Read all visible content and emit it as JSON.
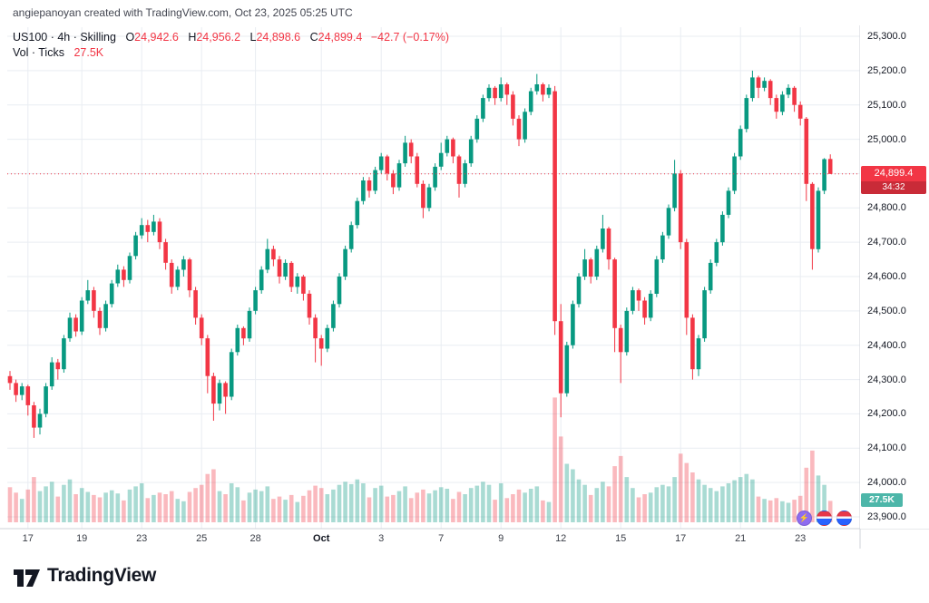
{
  "attribution": "angiepanoyan created with TradingView.com, Oct 23, 2025 05:25 UTC",
  "legend": {
    "title": "US100 · 4h · Skilling",
    "ohlc": {
      "o_label": "O",
      "o": "24,942.6",
      "h_label": "H",
      "h": "24,956.2",
      "l_label": "L",
      "l": "24,898.6",
      "c_label": "C",
      "c": "24,899.4",
      "change": "−42.7 (−0.17%)"
    },
    "volume_label": "Vol · Ticks",
    "volume_value": "27.5K"
  },
  "price_badge": {
    "price": "24,899.4",
    "countdown": "34:32"
  },
  "volume_badge": "27.5K",
  "icons": {
    "lightning_glyph": "⚡"
  },
  "footer": {
    "brand": "TradingView"
  },
  "chart_data": {
    "type": "candlestick",
    "title": "US100 4h Skilling",
    "symbol": "US100",
    "interval": "4h",
    "y_min": 23900,
    "y_max": 25300,
    "last_price": 24899.4,
    "last_volume_k": 27.5,
    "volume_units": "K",
    "colors": {
      "up": "#089981",
      "down": "#f23645"
    },
    "price_ticks": [
      {
        "value": 25300,
        "label": "25,300.0"
      },
      {
        "value": 25200,
        "label": "25,200.0"
      },
      {
        "value": 25100,
        "label": "25,100.0"
      },
      {
        "value": 25000,
        "label": "25,000.0"
      },
      {
        "value": 24900,
        "label": "24,900.0"
      },
      {
        "value": 24800,
        "label": "24,800.0"
      },
      {
        "value": 24700,
        "label": "24,700.0"
      },
      {
        "value": 24600,
        "label": "24,600.0"
      },
      {
        "value": 24500,
        "label": "24,500.0"
      },
      {
        "value": 24400,
        "label": "24,400.0"
      },
      {
        "value": 24300,
        "label": "24,300.0"
      },
      {
        "value": 24200,
        "label": "24,200.0"
      },
      {
        "value": 24100,
        "label": "24,100.0"
      },
      {
        "value": 24000,
        "label": "24,000.0"
      },
      {
        "value": 23900,
        "label": "23,900.0"
      }
    ],
    "time_ticks": [
      {
        "i": 3,
        "label": "17"
      },
      {
        "i": 12,
        "label": "19"
      },
      {
        "i": 22,
        "label": "23"
      },
      {
        "i": 32,
        "label": "25"
      },
      {
        "i": 41,
        "label": "28"
      },
      {
        "i": 52,
        "label": "Oct",
        "bold": true
      },
      {
        "i": 62,
        "label": "3"
      },
      {
        "i": 72,
        "label": "7"
      },
      {
        "i": 82,
        "label": "9"
      },
      {
        "i": 92,
        "label": "12"
      },
      {
        "i": 102,
        "label": "15"
      },
      {
        "i": 112,
        "label": "17"
      },
      {
        "i": 122,
        "label": "21"
      },
      {
        "i": 132,
        "label": "23"
      }
    ],
    "candles": [
      [
        24310,
        24325,
        24270,
        24290,
        45
      ],
      [
        24290,
        24300,
        24235,
        24255,
        38
      ],
      [
        24255,
        24290,
        24240,
        24280,
        30
      ],
      [
        24280,
        24285,
        24195,
        24225,
        42
      ],
      [
        24225,
        24235,
        24130,
        24160,
        58
      ],
      [
        24160,
        24215,
        24140,
        24200,
        40
      ],
      [
        24200,
        24290,
        24190,
        24280,
        46
      ],
      [
        24280,
        24365,
        24270,
        24350,
        52
      ],
      [
        24350,
        24360,
        24300,
        24330,
        33
      ],
      [
        24330,
        24430,
        24320,
        24420,
        48
      ],
      [
        24420,
        24495,
        24410,
        24480,
        55
      ],
      [
        24480,
        24490,
        24425,
        24440,
        36
      ],
      [
        24440,
        24540,
        24430,
        24530,
        44
      ],
      [
        24530,
        24590,
        24520,
        24560,
        39
      ],
      [
        24560,
        24570,
        24480,
        24500,
        35
      ],
      [
        24500,
        24510,
        24430,
        24450,
        32
      ],
      [
        24450,
        24530,
        24440,
        24520,
        38
      ],
      [
        24520,
        24590,
        24510,
        24580,
        41
      ],
      [
        24580,
        24635,
        24570,
        24620,
        37
      ],
      [
        24620,
        24630,
        24570,
        24590,
        28
      ],
      [
        24590,
        24670,
        24580,
        24660,
        42
      ],
      [
        24660,
        24730,
        24650,
        24720,
        46
      ],
      [
        24720,
        24770,
        24710,
        24750,
        50
      ],
      [
        24750,
        24765,
        24700,
        24730,
        31
      ],
      [
        24730,
        24780,
        24720,
        24760,
        35
      ],
      [
        24760,
        24770,
        24680,
        24700,
        38
      ],
      [
        24700,
        24710,
        24620,
        24640,
        36
      ],
      [
        24640,
        24650,
        24550,
        24570,
        40
      ],
      [
        24570,
        24630,
        24560,
        24620,
        30
      ],
      [
        24620,
        24660,
        24600,
        24650,
        27
      ],
      [
        24650,
        24655,
        24540,
        24560,
        39
      ],
      [
        24560,
        24570,
        24460,
        24480,
        44
      ],
      [
        24480,
        24490,
        24400,
        24420,
        48
      ],
      [
        24420,
        24430,
        24260,
        24310,
        62
      ],
      [
        24310,
        24320,
        24180,
        24230,
        68
      ],
      [
        24230,
        24300,
        24210,
        24290,
        40
      ],
      [
        24290,
        24295,
        24200,
        24250,
        36
      ],
      [
        24250,
        24390,
        24240,
        24380,
        50
      ],
      [
        24380,
        24460,
        24370,
        24450,
        45
      ],
      [
        24450,
        24455,
        24400,
        24420,
        28
      ],
      [
        24420,
        24510,
        24410,
        24500,
        38
      ],
      [
        24500,
        24570,
        24490,
        24560,
        42
      ],
      [
        24560,
        24630,
        24550,
        24620,
        40
      ],
      [
        24620,
        24710,
        24610,
        24680,
        46
      ],
      [
        24680,
        24690,
        24630,
        24650,
        30
      ],
      [
        24650,
        24660,
        24580,
        24600,
        33
      ],
      [
        24600,
        24650,
        24590,
        24640,
        29
      ],
      [
        24640,
        24645,
        24555,
        24570,
        35
      ],
      [
        24570,
        24610,
        24550,
        24600,
        26
      ],
      [
        24600,
        24605,
        24530,
        24550,
        34
      ],
      [
        24550,
        24560,
        24460,
        24480,
        41
      ],
      [
        24480,
        24490,
        24350,
        24420,
        47
      ],
      [
        24420,
        24430,
        24340,
        24390,
        44
      ],
      [
        24390,
        24460,
        24380,
        24450,
        36
      ],
      [
        24450,
        24530,
        24440,
        24520,
        42
      ],
      [
        24520,
        24610,
        24510,
        24600,
        48
      ],
      [
        24600,
        24690,
        24590,
        24680,
        52
      ],
      [
        24680,
        24760,
        24670,
        24750,
        49
      ],
      [
        24750,
        24830,
        24740,
        24820,
        55
      ],
      [
        24820,
        24890,
        24810,
        24880,
        50
      ],
      [
        24880,
        24890,
        24830,
        24850,
        32
      ],
      [
        24850,
        24920,
        24840,
        24910,
        44
      ],
      [
        24910,
        24960,
        24900,
        24950,
        47
      ],
      [
        24950,
        24955,
        24880,
        24900,
        33
      ],
      [
        24900,
        24910,
        24840,
        24860,
        35
      ],
      [
        24860,
        24940,
        24850,
        24930,
        40
      ],
      [
        24930,
        25010,
        24920,
        24990,
        46
      ],
      [
        24990,
        25000,
        24930,
        24950,
        31
      ],
      [
        24950,
        24960,
        24860,
        24870,
        38
      ],
      [
        24870,
        24880,
        24770,
        24800,
        42
      ],
      [
        24800,
        24870,
        24790,
        24860,
        37
      ],
      [
        24860,
        24930,
        24850,
        24920,
        41
      ],
      [
        24920,
        24990,
        24910,
        24960,
        45
      ],
      [
        24960,
        25010,
        24950,
        25000,
        43
      ],
      [
        25000,
        25005,
        24930,
        24950,
        30
      ],
      [
        24950,
        24955,
        24830,
        24870,
        39
      ],
      [
        24870,
        24940,
        24860,
        24930,
        36
      ],
      [
        24930,
        25010,
        24920,
        25000,
        44
      ],
      [
        25000,
        25070,
        24990,
        25060,
        47
      ],
      [
        25060,
        25130,
        25050,
        25120,
        52
      ],
      [
        25120,
        25160,
        25110,
        25150,
        48
      ],
      [
        25150,
        25155,
        25100,
        25120,
        29
      ],
      [
        25120,
        25180,
        25110,
        25160,
        50
      ],
      [
        25160,
        25165,
        25100,
        25130,
        31
      ],
      [
        25130,
        25140,
        25040,
        25060,
        36
      ],
      [
        25060,
        25070,
        24980,
        25000,
        42
      ],
      [
        25000,
        25090,
        24990,
        25080,
        38
      ],
      [
        25080,
        25150,
        25070,
        25140,
        43
      ],
      [
        25140,
        25190,
        25130,
        25160,
        46
      ],
      [
        25160,
        25165,
        25110,
        25130,
        28
      ],
      [
        25130,
        25160,
        25120,
        25150,
        26
      ],
      [
        25140,
        25155,
        24430,
        24470,
        160
      ],
      [
        24470,
        24520,
        24190,
        24260,
        110
      ],
      [
        24260,
        24410,
        24250,
        24400,
        75
      ],
      [
        24400,
        24530,
        24390,
        24520,
        68
      ],
      [
        24520,
        24610,
        24510,
        24600,
        55
      ],
      [
        24600,
        24680,
        24590,
        24650,
        48
      ],
      [
        24650,
        24655,
        24580,
        24600,
        35
      ],
      [
        24600,
        24690,
        24590,
        24680,
        44
      ],
      [
        24680,
        24780,
        24670,
        24740,
        52
      ],
      [
        24740,
        24745,
        24620,
        24650,
        46
      ],
      [
        24650,
        24655,
        24380,
        24450,
        72
      ],
      [
        24450,
        24460,
        24290,
        24380,
        85
      ],
      [
        24380,
        24510,
        24370,
        24500,
        58
      ],
      [
        24500,
        24570,
        24490,
        24560,
        44
      ],
      [
        24560,
        24565,
        24500,
        24530,
        32
      ],
      [
        24530,
        24540,
        24460,
        24480,
        36
      ],
      [
        24480,
        24560,
        24470,
        24550,
        38
      ],
      [
        24550,
        24660,
        24540,
        24650,
        45
      ],
      [
        24650,
        24730,
        24640,
        24720,
        48
      ],
      [
        24720,
        24810,
        24710,
        24800,
        46
      ],
      [
        24800,
        24940,
        24790,
        24900,
        58
      ],
      [
        24900,
        24910,
        24680,
        24700,
        88
      ],
      [
        24700,
        24710,
        24430,
        24480,
        76
      ],
      [
        24480,
        24490,
        24300,
        24330,
        64
      ],
      [
        24330,
        24430,
        24310,
        24420,
        55
      ],
      [
        24420,
        24570,
        24410,
        24560,
        48
      ],
      [
        24560,
        24650,
        24550,
        24640,
        44
      ],
      [
        24640,
        24710,
        24630,
        24700,
        40
      ],
      [
        24700,
        24790,
        24690,
        24780,
        46
      ],
      [
        24780,
        24860,
        24770,
        24850,
        50
      ],
      [
        24850,
        24960,
        24840,
        24950,
        54
      ],
      [
        24950,
        25040,
        24940,
        25030,
        58
      ],
      [
        25030,
        25130,
        25020,
        25120,
        62
      ],
      [
        25120,
        25200,
        25110,
        25180,
        55
      ],
      [
        25180,
        25185,
        25120,
        25150,
        33
      ],
      [
        25150,
        25180,
        25140,
        25170,
        30
      ],
      [
        25170,
        25175,
        25100,
        25120,
        28
      ],
      [
        25120,
        25130,
        25060,
        25080,
        31
      ],
      [
        25080,
        25140,
        25070,
        25130,
        27
      ],
      [
        25130,
        25160,
        25120,
        25150,
        25
      ],
      [
        25150,
        25155,
        25080,
        25100,
        29
      ],
      [
        25100,
        25110,
        25040,
        25060,
        34
      ],
      [
        25060,
        25065,
        24820,
        24870,
        70
      ],
      [
        24870,
        24875,
        24620,
        24680,
        92
      ],
      [
        24680,
        24860,
        24670,
        24850,
        60
      ],
      [
        24850,
        24945,
        24840,
        24942,
        48
      ],
      [
        24942.6,
        24956.2,
        24898.6,
        24899.4,
        27.5
      ]
    ]
  }
}
